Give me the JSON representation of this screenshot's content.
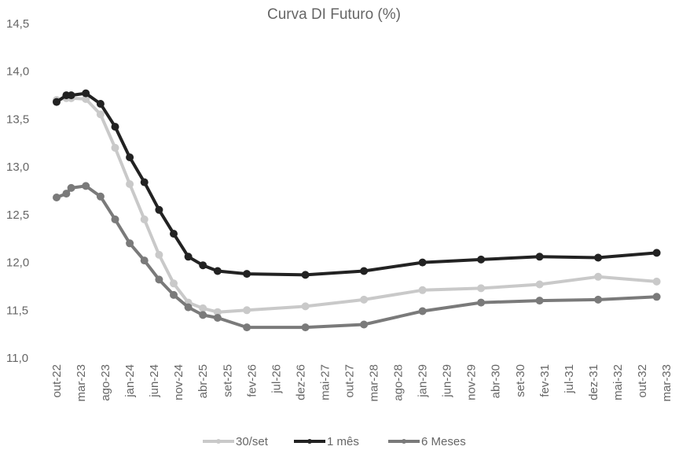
{
  "chart_data": {
    "type": "line",
    "title": "Curva DI Futuro (%)",
    "xlabel": "",
    "ylabel": "",
    "ylim": [
      11.0,
      14.5
    ],
    "yticks": [
      "11,0",
      "11,5",
      "12,0",
      "12,5",
      "13,0",
      "13,5",
      "14,0",
      "14,5"
    ],
    "x_tick_labels": [
      "out-22",
      "mar-23",
      "ago-23",
      "jan-24",
      "jun-24",
      "nov-24",
      "abr-25",
      "set-25",
      "fev-26",
      "jul-26",
      "dez-26",
      "mai-27",
      "out-27",
      "mar-28",
      "ago-28",
      "jan-29",
      "jun-29",
      "nov-29",
      "abr-30",
      "set-30",
      "fev-31",
      "jul-31",
      "dez-31",
      "mai-32",
      "out-32",
      "mar-33"
    ],
    "grid": false,
    "legend_position": "bottom",
    "series": [
      {
        "name": "30/set",
        "color": "#c9c9c9",
        "points": [
          [
            "2022-10",
            13.7
          ],
          [
            "2022-12",
            13.72
          ],
          [
            "2023-01",
            13.72
          ],
          [
            "2023-04",
            13.71
          ],
          [
            "2023-07",
            13.55
          ],
          [
            "2023-10",
            13.2
          ],
          [
            "2024-01",
            12.82
          ],
          [
            "2024-04",
            12.45
          ],
          [
            "2024-07",
            12.08
          ],
          [
            "2024-10",
            11.78
          ],
          [
            "2025-01",
            11.58
          ],
          [
            "2025-04",
            11.52
          ],
          [
            "2025-07",
            11.48
          ],
          [
            "2026-01",
            11.5
          ],
          [
            "2027-01",
            11.54
          ],
          [
            "2028-01",
            11.61
          ],
          [
            "2029-01",
            11.71
          ],
          [
            "2030-01",
            11.73
          ],
          [
            "2031-01",
            11.77
          ],
          [
            "2032-01",
            11.85
          ],
          [
            "2033-01",
            11.8
          ]
        ]
      },
      {
        "name": "1 mês",
        "color": "#222222",
        "points": [
          [
            "2022-10",
            13.68
          ],
          [
            "2022-12",
            13.75
          ],
          [
            "2023-01",
            13.75
          ],
          [
            "2023-04",
            13.77
          ],
          [
            "2023-07",
            13.66
          ],
          [
            "2023-10",
            13.42
          ],
          [
            "2024-01",
            13.1
          ],
          [
            "2024-04",
            12.84
          ],
          [
            "2024-07",
            12.55
          ],
          [
            "2024-10",
            12.3
          ],
          [
            "2025-01",
            12.06
          ],
          [
            "2025-04",
            11.97
          ],
          [
            "2025-07",
            11.91
          ],
          [
            "2026-01",
            11.88
          ],
          [
            "2027-01",
            11.87
          ],
          [
            "2028-01",
            11.91
          ],
          [
            "2029-01",
            12.0
          ],
          [
            "2030-01",
            12.03
          ],
          [
            "2031-01",
            12.06
          ],
          [
            "2032-01",
            12.05
          ],
          [
            "2033-01",
            12.1
          ]
        ]
      },
      {
        "name": "6 Meses",
        "color": "#7a7a7a",
        "points": [
          [
            "2022-10",
            12.68
          ],
          [
            "2022-12",
            12.72
          ],
          [
            "2023-01",
            12.78
          ],
          [
            "2023-04",
            12.8
          ],
          [
            "2023-07",
            12.69
          ],
          [
            "2023-10",
            12.45
          ],
          [
            "2024-01",
            12.2
          ],
          [
            "2024-04",
            12.02
          ],
          [
            "2024-07",
            11.82
          ],
          [
            "2024-10",
            11.66
          ],
          [
            "2025-01",
            11.53
          ],
          [
            "2025-04",
            11.45
          ],
          [
            "2025-07",
            11.42
          ],
          [
            "2026-01",
            11.32
          ],
          [
            "2027-01",
            11.32
          ],
          [
            "2028-01",
            11.35
          ],
          [
            "2029-01",
            11.49
          ],
          [
            "2030-01",
            11.58
          ],
          [
            "2031-01",
            11.6
          ],
          [
            "2032-01",
            11.61
          ],
          [
            "2033-01",
            11.64
          ]
        ]
      }
    ]
  }
}
